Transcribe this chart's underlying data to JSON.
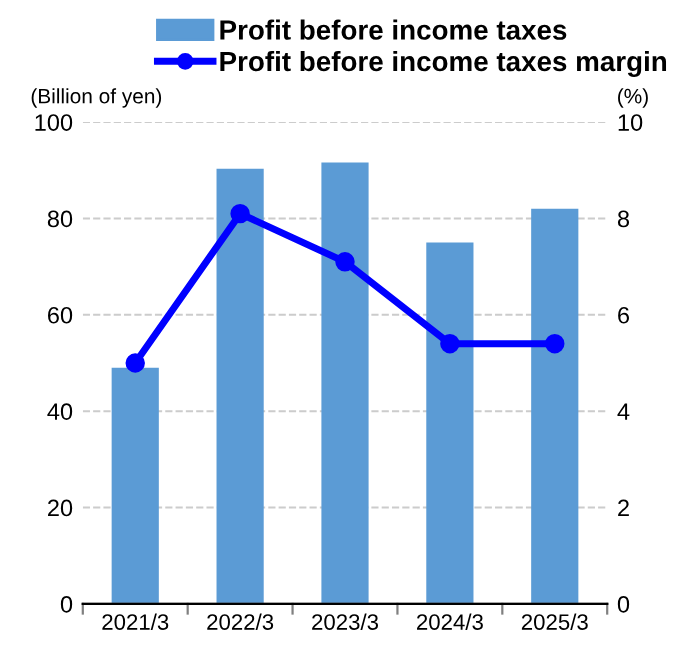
{
  "chart_data": {
    "type": "bar",
    "categories": [
      "2021/3",
      "2022/3",
      "2023/3",
      "2024/3",
      "2025/3"
    ],
    "series": [
      {
        "name": "Profit before income taxes",
        "color": "#5b9bd5",
        "values": [
          49,
          90.3,
          91.6,
          75,
          82
        ]
      },
      {
        "name": "Profit before income taxes margin",
        "type": "line",
        "axis": "y2",
        "color": "#0000ff",
        "marker": "circle",
        "values": [
          5.0,
          8.1,
          7.1,
          5.4,
          5.4
        ]
      }
    ],
    "ylabel": "(Billion of yen)",
    "y2label": "(%)",
    "ylim": [
      0,
      100
    ],
    "yticks": [
      0,
      20,
      40,
      60,
      80,
      100
    ],
    "y2lim": [
      0,
      10
    ],
    "y2ticks": [
      0,
      2,
      4,
      6,
      8,
      10
    ],
    "grid": "y",
    "legend": "top"
  }
}
